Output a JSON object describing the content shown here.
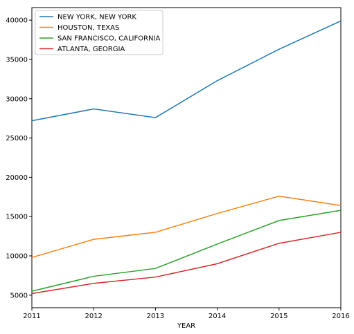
{
  "chart_data": {
    "type": "line",
    "title": "",
    "xlabel": "YEAR",
    "ylabel": "",
    "x": [
      2011,
      2012,
      2013,
      2014,
      2015,
      2016
    ],
    "xlim": [
      2011,
      2016
    ],
    "ylim": [
      3400,
      41600
    ],
    "xticks": [
      "2011",
      "2012",
      "2013",
      "2014",
      "2015",
      "2016"
    ],
    "yticks": [
      "5000",
      "10000",
      "15000",
      "20000",
      "25000",
      "30000",
      "35000",
      "40000"
    ],
    "grid": false,
    "legend": "top-left",
    "series": [
      {
        "name": "NEW YORK, NEW YORK",
        "color": "#1f77b4",
        "values": [
          27200,
          28700,
          27600,
          32300,
          36300,
          39900
        ]
      },
      {
        "name": "HOUSTON, TEXAS",
        "color": "#ff7f0e",
        "values": [
          9800,
          12100,
          13000,
          15400,
          17600,
          16400
        ]
      },
      {
        "name": "SAN FRANCISCO, CALIFORNIA",
        "color": "#2ca02c",
        "values": [
          5500,
          7400,
          8400,
          11500,
          14500,
          15800
        ]
      },
      {
        "name": "ATLANTA, GEORGIA",
        "color": "#d62728",
        "values": [
          5200,
          6500,
          7300,
          9000,
          11600,
          13000
        ]
      }
    ]
  }
}
